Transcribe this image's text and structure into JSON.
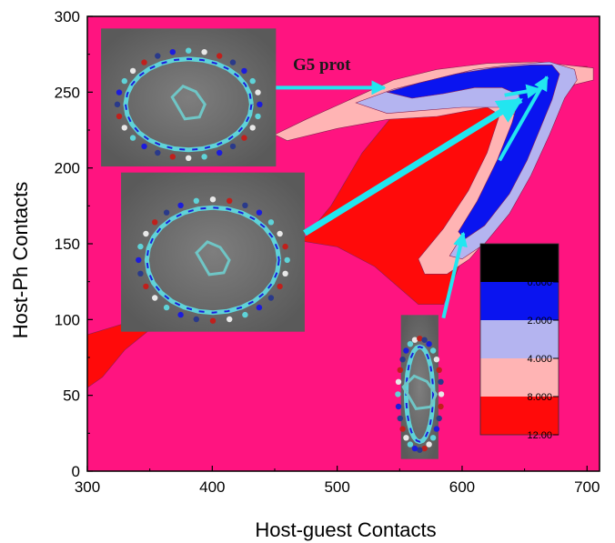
{
  "chart_data": {
    "type": "heatmap",
    "title": "",
    "xlabel": "Host-guest Contacts",
    "ylabel": "Host-Ph Contacts",
    "xlim": [
      300,
      710
    ],
    "ylim": [
      0,
      300
    ],
    "xticks": [
      300,
      400,
      500,
      600,
      700
    ],
    "yticks": [
      0,
      50,
      100,
      150,
      200,
      250,
      300
    ],
    "background_color": "#ff1480",
    "annotation": "G5 prot",
    "colorbar": {
      "levels": [
        "0.000",
        "2.000",
        "4.000",
        "8.000",
        "12.00"
      ],
      "colors": [
        "#000000",
        "#0a14f0",
        "#b4b4f0",
        "#ffb4b4",
        "#ff0a0a"
      ]
    },
    "regions": [
      {
        "level": "8.000",
        "color": "#ff0a0a",
        "polygon": [
          [
            300,
            55
          ],
          [
            312,
            62
          ],
          [
            330,
            80
          ],
          [
            360,
            100
          ],
          [
            400,
            112
          ],
          [
            440,
            125
          ],
          [
            470,
            150
          ],
          [
            495,
            175
          ],
          [
            520,
            210
          ],
          [
            545,
            235
          ],
          [
            575,
            252
          ],
          [
            610,
            262
          ],
          [
            645,
            267
          ],
          [
            700,
            267
          ],
          [
            700,
            258
          ],
          [
            660,
            250
          ],
          [
            640,
            210
          ],
          [
            620,
            175
          ],
          [
            600,
            140
          ],
          [
            585,
            110
          ],
          [
            565,
            110
          ],
          [
            530,
            135
          ],
          [
            500,
            148
          ],
          [
            470,
            152
          ],
          [
            440,
            128
          ],
          [
            400,
            112
          ],
          [
            340,
            100
          ],
          [
            300,
            90
          ]
        ]
      },
      {
        "level": "4.000",
        "color": "#ffb4b4",
        "polygon": [
          [
            450,
            222
          ],
          [
            475,
            232
          ],
          [
            510,
            245
          ],
          [
            545,
            258
          ],
          [
            580,
            265
          ],
          [
            620,
            269
          ],
          [
            660,
            270
          ],
          [
            705,
            266
          ],
          [
            705,
            258
          ],
          [
            690,
            255
          ],
          [
            675,
            240
          ],
          [
            662,
            215
          ],
          [
            646,
            185
          ],
          [
            625,
            158
          ],
          [
            606,
            140
          ],
          [
            588,
            130
          ],
          [
            570,
            130
          ],
          [
            565,
            140
          ],
          [
            585,
            160
          ],
          [
            605,
            185
          ],
          [
            620,
            210
          ],
          [
            630,
            235
          ],
          [
            620,
            240
          ],
          [
            580,
            234
          ],
          [
            540,
            232
          ],
          [
            500,
            226
          ],
          [
            460,
            218
          ]
        ]
      },
      {
        "level": "2.000",
        "color": "#b4b4f0",
        "polygon": [
          [
            515,
            243
          ],
          [
            545,
            252
          ],
          [
            575,
            258
          ],
          [
            610,
            265
          ],
          [
            640,
            268
          ],
          [
            670,
            270
          ],
          [
            690,
            265
          ],
          [
            692,
            258
          ],
          [
            682,
            246
          ],
          [
            670,
            222
          ],
          [
            655,
            195
          ],
          [
            638,
            170
          ],
          [
            618,
            150
          ],
          [
            600,
            140
          ],
          [
            590,
            142
          ],
          [
            605,
            162
          ],
          [
            622,
            190
          ],
          [
            635,
            215
          ],
          [
            642,
            235
          ],
          [
            630,
            240
          ],
          [
            600,
            240
          ],
          [
            570,
            238
          ],
          [
            540,
            236
          ]
        ]
      },
      {
        "level": "0.000",
        "color": "#0a14f0",
        "polygon": [
          [
            540,
            250
          ],
          [
            565,
            256
          ],
          [
            595,
            262
          ],
          [
            625,
            266
          ],
          [
            655,
            268
          ],
          [
            672,
            268
          ],
          [
            678,
            262
          ],
          [
            672,
            245
          ],
          [
            662,
            225
          ],
          [
            652,
            205
          ],
          [
            638,
            183
          ],
          [
            618,
            162
          ],
          [
            602,
            153
          ],
          [
            597,
            158
          ],
          [
            612,
            178
          ],
          [
            628,
            205
          ],
          [
            640,
            230
          ],
          [
            646,
            248
          ],
          [
            632,
            253
          ],
          [
            610,
            253
          ],
          [
            585,
            249
          ],
          [
            560,
            246
          ]
        ]
      }
    ],
    "arrows": [
      {
        "from": [
          451,
          253
        ],
        "to": [
          538,
          253
        ]
      },
      {
        "from": [
          474,
          157
        ],
        "to": [
          647,
          245
        ]
      },
      {
        "from": [
          630,
          205
        ],
        "to": [
          668,
          260
        ]
      },
      {
        "from": [
          634,
          248
        ],
        "to": [
          662,
          252
        ]
      },
      {
        "from": [
          585,
          101
        ],
        "to": [
          601,
          157
        ]
      }
    ],
    "insets": [
      {
        "name": "inset-top",
        "x0": 311,
        "x1": 451,
        "y1": 292,
        "y0": 201
      },
      {
        "name": "inset-middle",
        "x0": 327,
        "x1": 474,
        "y1": 197,
        "y0": 92
      },
      {
        "name": "inset-bottom",
        "x0": 551,
        "x1": 581,
        "y1": 103,
        "y0": 8
      }
    ]
  }
}
